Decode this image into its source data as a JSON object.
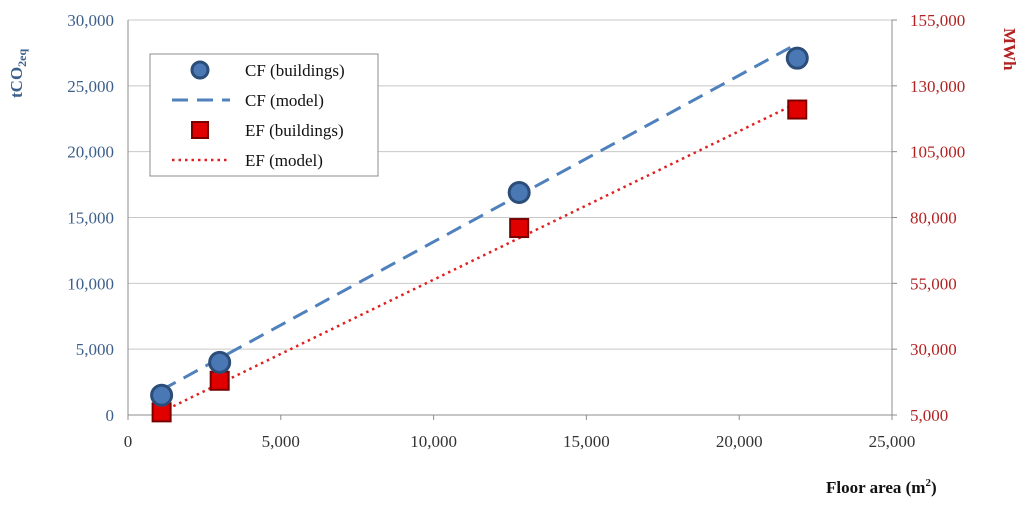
{
  "chart_data": {
    "type": "scatter",
    "x_axis": {
      "label_main": "Floor area (m",
      "label_sup": "2",
      "label_end": ")",
      "range": [
        0,
        25000
      ],
      "ticks": [
        "0",
        "5,000",
        "10,000",
        "15,000",
        "20,000",
        "25,000"
      ]
    },
    "y_left": {
      "label_main": "tCO",
      "label_sub": "2eq",
      "range": [
        0,
        30000
      ],
      "ticks": [
        "0",
        "5,000",
        "10,000",
        "15,000",
        "20,000",
        "25,000",
        "30,000"
      ],
      "color": "#3c5f8c"
    },
    "y_right": {
      "label": "MWh",
      "range": [
        5000,
        155000
      ],
      "ticks": [
        "5,000",
        "30,000",
        "55,000",
        "80,000",
        "105,000",
        "130,000",
        "155,000"
      ],
      "color": "#b22222"
    },
    "grid": true,
    "legend_position": "top-left",
    "series": [
      {
        "name": "CF (buildings)",
        "axis": "left",
        "style": "circle",
        "color": "#4a78b5",
        "points": [
          [
            1100,
            1500
          ],
          [
            3000,
            4000
          ],
          [
            12800,
            16900
          ],
          [
            21900,
            27100
          ]
        ]
      },
      {
        "name": "CF (model)",
        "axis": "left",
        "style": "dashed",
        "color": "#4f81bd",
        "points": [
          [
            1100,
            1900
          ],
          [
            21900,
            28200
          ]
        ]
      },
      {
        "name": "EF (buildings)",
        "axis": "right",
        "style": "square",
        "color": "#e00000",
        "points": [
          [
            1100,
            6000
          ],
          [
            3000,
            18000
          ],
          [
            12800,
            76000
          ],
          [
            21900,
            121000
          ]
        ]
      },
      {
        "name": "EF (model)",
        "axis": "right",
        "style": "dotted",
        "color": "#e02020",
        "points": [
          [
            1100,
            6200
          ],
          [
            21900,
            123500
          ]
        ]
      }
    ]
  }
}
